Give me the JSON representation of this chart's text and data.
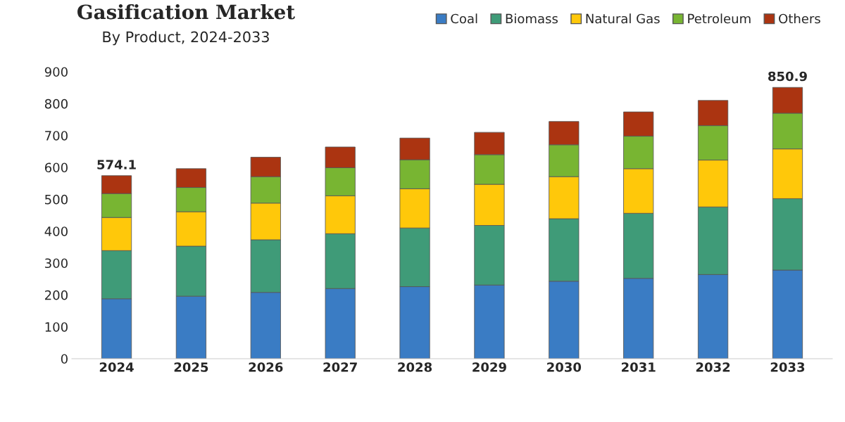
{
  "chart_data": {
    "type": "bar",
    "title": "Gasification Market",
    "subtitle": "By Product, 2024-2033",
    "categories": [
      "2024",
      "2025",
      "2026",
      "2027",
      "2028",
      "2029",
      "2030",
      "2031",
      "2032",
      "2033"
    ],
    "stacked": true,
    "series": [
      {
        "name": "Coal",
        "color": "#3a7cc4",
        "values": [
          188,
          196,
          208,
          220,
          226,
          231,
          243,
          252,
          264,
          278
        ]
      },
      {
        "name": "Biomass",
        "color": "#3f9b78",
        "values": [
          151,
          157,
          165,
          172,
          184,
          187,
          196,
          204,
          212,
          224
        ]
      },
      {
        "name": "Natural Gas",
        "color": "#ffc80a",
        "values": [
          104,
          108,
          115,
          119,
          123,
          129,
          132,
          140,
          147,
          156
        ]
      },
      {
        "name": "Petroleum",
        "color": "#78b532",
        "values": [
          75,
          76,
          83,
          88,
          91,
          93,
          100,
          102,
          108,
          112
        ]
      },
      {
        "name": "Others",
        "color": "#ab3411",
        "values": [
          56.1,
          59,
          61,
          65,
          68,
          70,
          73,
          76,
          79,
          80.9
        ]
      }
    ],
    "totals": [
      "574.1",
      null,
      null,
      null,
      null,
      null,
      null,
      null,
      null,
      "850.9"
    ],
    "ylim": [
      0,
      900
    ],
    "yticks": [
      0,
      100,
      200,
      300,
      400,
      500,
      600,
      700,
      800,
      900
    ],
    "grid": false,
    "legend": "top right"
  }
}
